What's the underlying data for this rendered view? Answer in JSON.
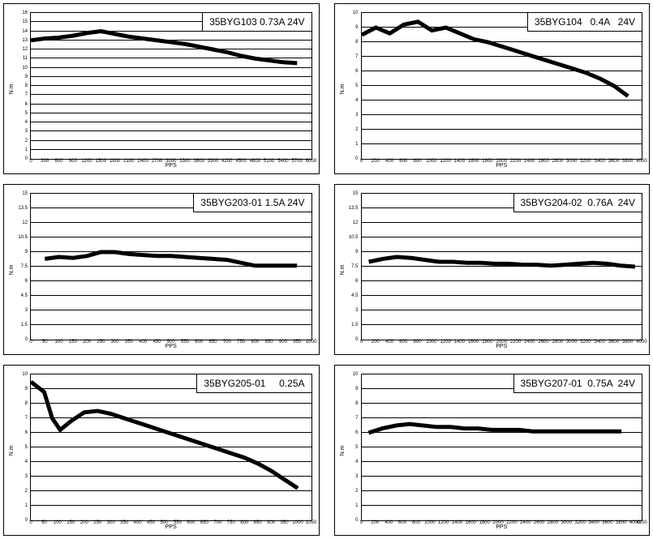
{
  "layout": {
    "rows": 3,
    "cols": 2,
    "background_color": "#ffffff",
    "panel_border_color": "#000000",
    "grid_line_color": "#000000",
    "curve_color": "#000000",
    "curve_width": 1,
    "legend_fontsize": 12,
    "tick_fontsize": 6,
    "axis_label_fontsize": 7
  },
  "charts": [
    {
      "legend": "35BYG103 0.73A 24V",
      "xlabel": "PPS",
      "ylabel": "N.m",
      "x_range": [
        0,
        6000
      ],
      "x_ticks": [
        0,
        300,
        600,
        900,
        1200,
        1500,
        1800,
        2100,
        2400,
        2700,
        3000,
        3300,
        3600,
        3900,
        4200,
        4500,
        4800,
        5100,
        5400,
        5700,
        6000
      ],
      "y_range": [
        0,
        16
      ],
      "y_ticks": [
        0,
        1,
        2,
        3,
        4,
        5,
        6,
        7,
        8,
        9,
        10,
        11,
        12,
        13,
        14,
        15,
        16
      ],
      "series": [
        [
          0,
          13
        ],
        [
          300,
          13.2
        ],
        [
          600,
          13.3
        ],
        [
          900,
          13.5
        ],
        [
          1200,
          13.8
        ],
        [
          1500,
          14.0
        ],
        [
          1800,
          13.7
        ],
        [
          2100,
          13.4
        ],
        [
          2400,
          13.2
        ],
        [
          2700,
          13.0
        ],
        [
          3000,
          12.8
        ],
        [
          3300,
          12.6
        ],
        [
          3600,
          12.3
        ],
        [
          3900,
          12.0
        ],
        [
          4200,
          11.7
        ],
        [
          4500,
          11.3
        ],
        [
          4800,
          11.0
        ],
        [
          5100,
          10.8
        ],
        [
          5400,
          10.6
        ],
        [
          5700,
          10.5
        ]
      ]
    },
    {
      "legend": "35BYG104   0.4A   24V",
      "xlabel": "PPS",
      "ylabel": "N.m",
      "x_range": [
        0,
        4000
      ],
      "x_ticks": [
        0,
        200,
        400,
        600,
        800,
        1000,
        1200,
        1400,
        1600,
        1800,
        2000,
        2200,
        2400,
        2600,
        2800,
        3000,
        3200,
        3400,
        3600,
        3800,
        4000
      ],
      "y_range": [
        0,
        10
      ],
      "y_ticks": [
        0,
        1,
        2,
        3,
        4,
        5,
        6,
        7,
        8,
        9,
        10
      ],
      "series": [
        [
          0,
          8.5
        ],
        [
          200,
          9.0
        ],
        [
          400,
          8.6
        ],
        [
          600,
          9.2
        ],
        [
          800,
          9.4
        ],
        [
          1000,
          8.8
        ],
        [
          1200,
          9.0
        ],
        [
          1400,
          8.6
        ],
        [
          1600,
          8.2
        ],
        [
          1800,
          8.0
        ],
        [
          2000,
          7.7
        ],
        [
          2200,
          7.4
        ],
        [
          2400,
          7.1
        ],
        [
          2600,
          6.8
        ],
        [
          2800,
          6.5
        ],
        [
          3000,
          6.2
        ],
        [
          3200,
          5.9
        ],
        [
          3400,
          5.5
        ],
        [
          3600,
          5.0
        ],
        [
          3800,
          4.3
        ]
      ]
    },
    {
      "legend": "35BYG203-01 1.5A 24V",
      "xlabel": "PPS",
      "ylabel": "N.m",
      "x_range": [
        0,
        1000
      ],
      "x_ticks": [
        0,
        50,
        100,
        150,
        200,
        250,
        300,
        350,
        400,
        450,
        500,
        550,
        600,
        650,
        700,
        750,
        800,
        850,
        900,
        950,
        1000
      ],
      "y_range": [
        0,
        15
      ],
      "y_ticks": [
        0,
        1.5,
        3,
        4.5,
        6,
        7.5,
        9,
        10.5,
        12,
        13.5,
        15
      ],
      "series": [
        [
          50,
          8.3
        ],
        [
          100,
          8.5
        ],
        [
          150,
          8.4
        ],
        [
          200,
          8.6
        ],
        [
          250,
          9.0
        ],
        [
          300,
          9.0
        ],
        [
          350,
          8.8
        ],
        [
          400,
          8.7
        ],
        [
          450,
          8.6
        ],
        [
          500,
          8.6
        ],
        [
          550,
          8.5
        ],
        [
          600,
          8.4
        ],
        [
          650,
          8.3
        ],
        [
          700,
          8.2
        ],
        [
          750,
          7.9
        ],
        [
          800,
          7.6
        ],
        [
          850,
          7.6
        ],
        [
          900,
          7.6
        ],
        [
          950,
          7.6
        ]
      ]
    },
    {
      "legend": "35BYG204-02  0.76A  24V",
      "xlabel": "PPS",
      "ylabel": "N.m",
      "x_range": [
        0,
        4000
      ],
      "x_ticks": [
        0,
        200,
        400,
        600,
        800,
        1000,
        1200,
        1400,
        1600,
        1800,
        2000,
        2200,
        2400,
        2600,
        2800,
        3000,
        3200,
        3400,
        3600,
        3800,
        4000
      ],
      "y_range": [
        0,
        15
      ],
      "y_ticks": [
        0,
        1.5,
        3,
        4.5,
        6,
        7.5,
        9,
        10.5,
        12,
        13.5,
        15
      ],
      "series": [
        [
          100,
          8.0
        ],
        [
          300,
          8.3
        ],
        [
          500,
          8.5
        ],
        [
          700,
          8.4
        ],
        [
          900,
          8.2
        ],
        [
          1100,
          8.0
        ],
        [
          1300,
          8.0
        ],
        [
          1500,
          7.9
        ],
        [
          1700,
          7.9
        ],
        [
          1900,
          7.8
        ],
        [
          2100,
          7.8
        ],
        [
          2300,
          7.7
        ],
        [
          2500,
          7.7
        ],
        [
          2700,
          7.6
        ],
        [
          2900,
          7.7
        ],
        [
          3100,
          7.8
        ],
        [
          3300,
          7.9
        ],
        [
          3500,
          7.8
        ],
        [
          3700,
          7.6
        ],
        [
          3900,
          7.5
        ]
      ]
    },
    {
      "legend": "35BYG205-01     0.25A",
      "xlabel": "PPS",
      "ylabel": "N.m",
      "x_range": [
        0,
        1050
      ],
      "x_ticks": [
        0,
        50,
        100,
        150,
        200,
        250,
        300,
        350,
        400,
        450,
        500,
        550,
        600,
        650,
        700,
        750,
        800,
        850,
        900,
        950,
        1000,
        1050
      ],
      "y_range": [
        0,
        10
      ],
      "y_ticks": [
        0,
        1,
        2,
        3,
        4,
        5,
        6,
        7,
        8,
        9,
        10
      ],
      "series": [
        [
          0,
          9.5
        ],
        [
          50,
          8.8
        ],
        [
          80,
          7.0
        ],
        [
          110,
          6.2
        ],
        [
          150,
          6.8
        ],
        [
          200,
          7.4
        ],
        [
          250,
          7.5
        ],
        [
          300,
          7.3
        ],
        [
          350,
          7.0
        ],
        [
          400,
          6.7
        ],
        [
          450,
          6.4
        ],
        [
          500,
          6.1
        ],
        [
          550,
          5.8
        ],
        [
          600,
          5.5
        ],
        [
          650,
          5.2
        ],
        [
          700,
          4.9
        ],
        [
          750,
          4.6
        ],
        [
          800,
          4.3
        ],
        [
          850,
          3.9
        ],
        [
          900,
          3.4
        ],
        [
          950,
          2.8
        ],
        [
          1000,
          2.2
        ]
      ]
    },
    {
      "legend": "35BYG207-01  0.75A  24V",
      "xlabel": "PPS",
      "ylabel": "N.m",
      "x_range": [
        0,
        4100
      ],
      "x_ticks": [
        0,
        200,
        400,
        600,
        800,
        1000,
        1200,
        1400,
        1600,
        1800,
        2000,
        2200,
        2400,
        2600,
        2800,
        3000,
        3200,
        3400,
        3600,
        3800,
        4000,
        4100
      ],
      "y_range": [
        0,
        10
      ],
      "y_ticks": [
        0,
        1,
        2,
        3,
        4,
        5,
        6,
        7,
        8,
        9,
        10
      ],
      "series": [
        [
          100,
          6.0
        ],
        [
          300,
          6.3
        ],
        [
          500,
          6.5
        ],
        [
          700,
          6.6
        ],
        [
          900,
          6.5
        ],
        [
          1100,
          6.4
        ],
        [
          1300,
          6.4
        ],
        [
          1500,
          6.3
        ],
        [
          1700,
          6.3
        ],
        [
          1900,
          6.2
        ],
        [
          2100,
          6.2
        ],
        [
          2300,
          6.2
        ],
        [
          2500,
          6.1
        ],
        [
          2700,
          6.1
        ],
        [
          2900,
          6.1
        ],
        [
          3100,
          6.1
        ],
        [
          3300,
          6.1
        ],
        [
          3500,
          6.1
        ],
        [
          3700,
          6.1
        ],
        [
          3800,
          6.1
        ]
      ]
    }
  ]
}
